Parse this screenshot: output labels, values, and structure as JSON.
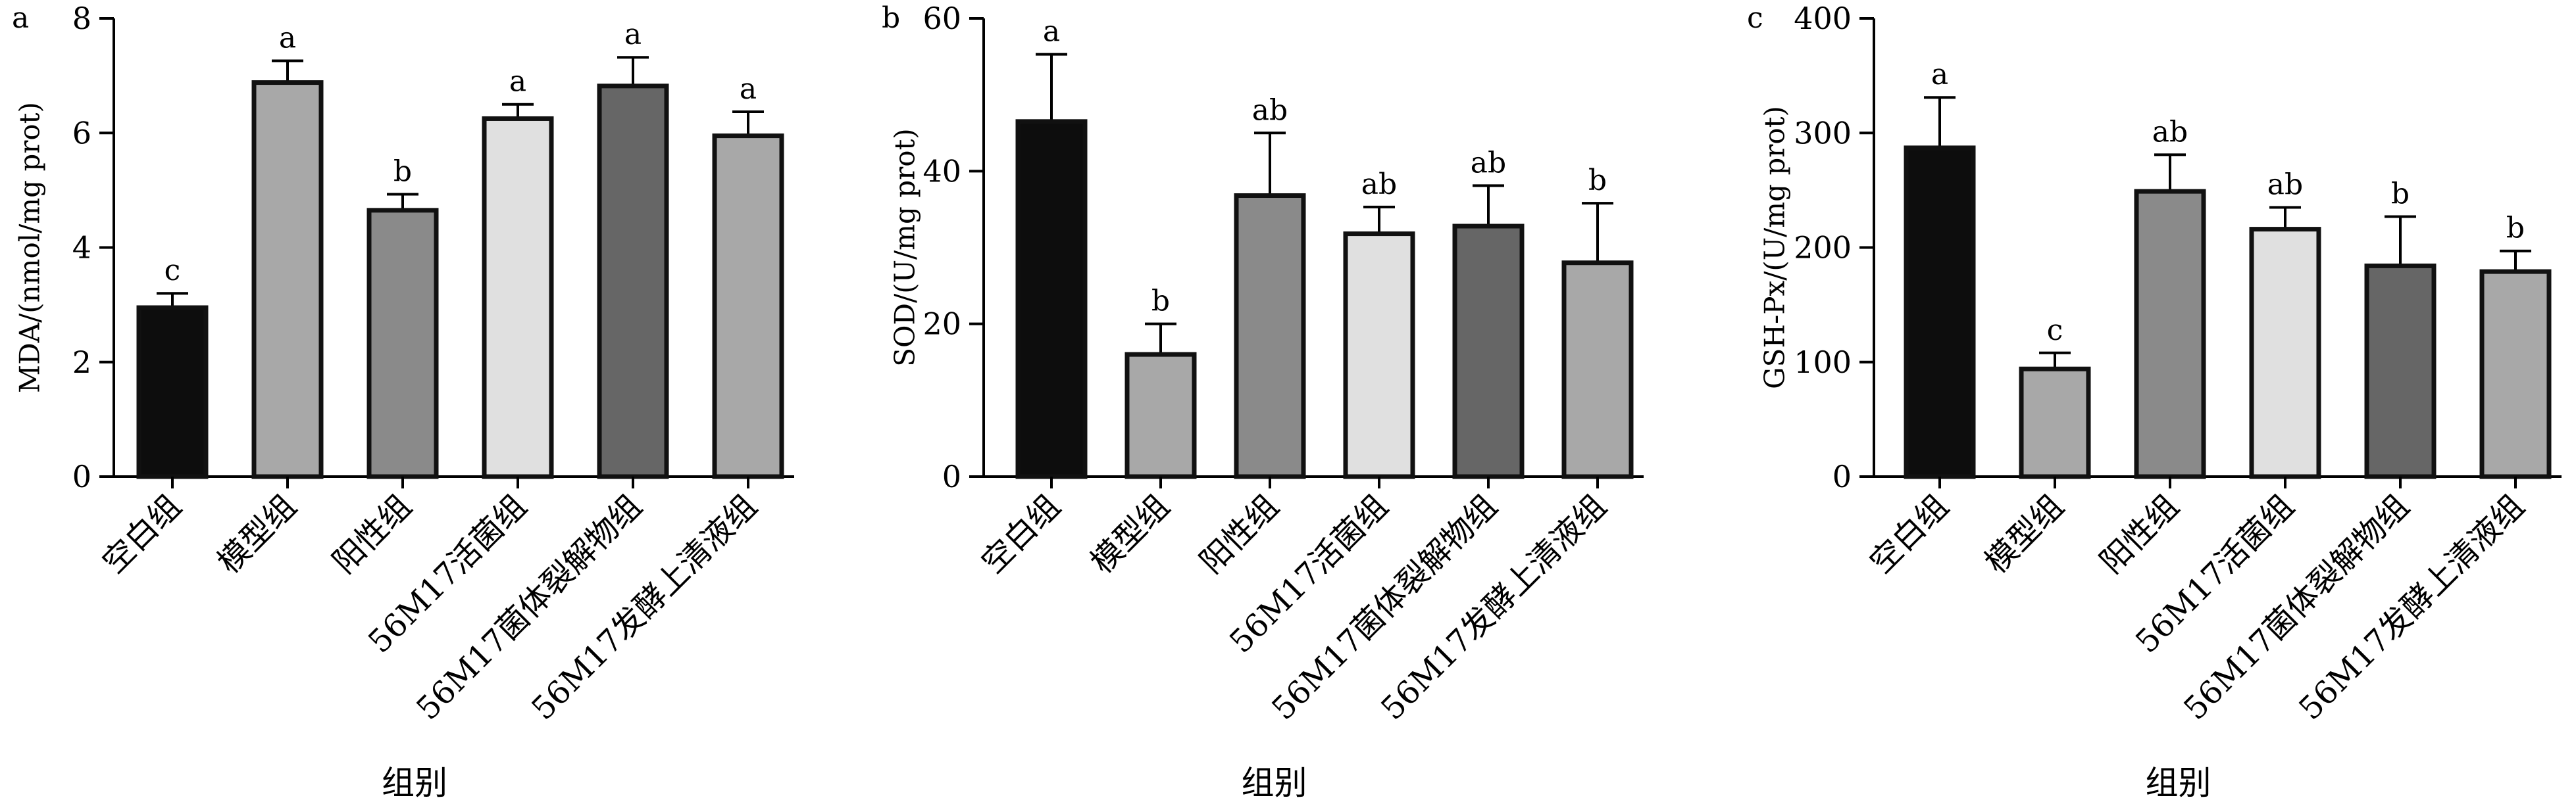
{
  "chart_data": [
    {
      "type": "bar",
      "panel_label": "a",
      "ylabel": "MDA/(nmol/mg prot)",
      "xlabel": "组别",
      "ylim": [
        0,
        8
      ],
      "yticks": [
        "0",
        "2",
        "4",
        "6",
        "8"
      ],
      "categories": [
        "空白组",
        "模型组",
        "阳性组",
        "56M17活菌组",
        "56M17菌体裂解物组",
        "56M17发酵上清液组"
      ],
      "values": [
        2.95,
        6.88,
        4.65,
        6.25,
        6.82,
        5.95
      ],
      "errors": [
        0.25,
        0.38,
        0.28,
        0.25,
        0.5,
        0.42
      ],
      "significance": [
        "c",
        "a",
        "b",
        "a",
        "a",
        "a"
      ]
    },
    {
      "type": "bar",
      "panel_label": "b",
      "ylabel": "SOD/(U/mg prot)",
      "xlabel": "组别",
      "ylim": [
        0,
        60
      ],
      "yticks": [
        "0",
        "20",
        "40",
        "60"
      ],
      "categories": [
        "空白组",
        "模型组",
        "阳性组",
        "56M17活菌组",
        "56M17菌体裂解物组",
        "56M17发酵上清液组"
      ],
      "values": [
        46.5,
        16.0,
        36.8,
        31.8,
        32.8,
        28.0
      ],
      "errors": [
        8.8,
        4.0,
        8.2,
        3.5,
        5.3,
        7.8
      ],
      "significance": [
        "a",
        "b",
        "ab",
        "ab",
        "ab",
        "b"
      ]
    },
    {
      "type": "bar",
      "panel_label": "c",
      "ylabel": "GSH-Px/(U/mg prot)",
      "xlabel": "组别",
      "ylim": [
        0,
        400
      ],
      "yticks": [
        "0",
        "100",
        "200",
        "300",
        "400"
      ],
      "categories": [
        "空白组",
        "模型组",
        "阳性组",
        "56M17活菌组",
        "56M17菌体裂解物组",
        "56M17发酵上清液组"
      ],
      "values": [
        287,
        94,
        249,
        216,
        184,
        179
      ],
      "errors": [
        44,
        14,
        32,
        19,
        43,
        18
      ],
      "significance": [
        "a",
        "c",
        "ab",
        "ab",
        "b",
        "b"
      ]
    }
  ],
  "colors": {
    "bar_fills": [
      "#0d0d0d",
      "#a8a8a8",
      "#8a8a8a",
      "#e0e0e0",
      "#666666",
      "#a8a8a8"
    ],
    "outline": "#111111",
    "axis": "#000000"
  }
}
